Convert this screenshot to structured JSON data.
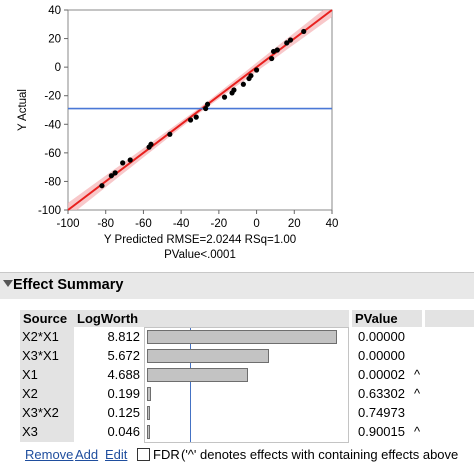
{
  "chart_data": {
    "type": "scatter",
    "xlabel": "Y Predicted RMSE=2.0244 RSq=1.00",
    "xlabel2": "PValue<.0001",
    "ylabel": "Y Actual",
    "xlim": [
      -100,
      40
    ],
    "ylim": [
      -100,
      40
    ],
    "xticks": [
      "-100",
      "-80",
      "-60",
      "-40",
      "-20",
      "0",
      "20",
      "40"
    ],
    "yticks": [
      "40",
      "20",
      "0",
      "-20",
      "-40",
      "-60",
      "-80",
      "-100"
    ],
    "mean_line": -29,
    "fit_line": [
      [
        -100,
        -100
      ],
      [
        40,
        40
      ]
    ],
    "points": [
      [
        -82,
        -83
      ],
      [
        -77,
        -76
      ],
      [
        -75,
        -74
      ],
      [
        -71,
        -67
      ],
      [
        -67,
        -65
      ],
      [
        -57,
        -56
      ],
      [
        -56,
        -54
      ],
      [
        -46,
        -47
      ],
      [
        -35,
        -37
      ],
      [
        -32,
        -35
      ],
      [
        -27,
        -29
      ],
      [
        -26,
        -26
      ],
      [
        -17,
        -21
      ],
      [
        -13,
        -18
      ],
      [
        -12,
        -16
      ],
      [
        -7,
        -12
      ],
      [
        -4,
        -8
      ],
      [
        -3,
        -6
      ],
      [
        0,
        -2
      ],
      [
        8,
        6
      ],
      [
        9,
        11
      ],
      [
        11,
        12
      ],
      [
        16,
        17
      ],
      [
        18,
        19
      ],
      [
        25,
        25
      ]
    ],
    "colors": {
      "fit": "#e8201e",
      "band": "#f6b6b8",
      "mean": "#4a78d6",
      "point": "#000000"
    }
  },
  "effect_summary": {
    "title": "Effect Summary",
    "headers": {
      "source": "Source",
      "logworth": "LogWorth",
      "pvalue": "PValue"
    },
    "rows": [
      {
        "source": "X2*X1",
        "logworth": "8.812",
        "pvalue": "0.00000",
        "caret": "",
        "lw": 8.812
      },
      {
        "source": "X3*X1",
        "logworth": "5.672",
        "pvalue": "0.00000",
        "caret": "",
        "lw": 5.672
      },
      {
        "source": "X1",
        "logworth": "4.688",
        "pvalue": "0.00002",
        "caret": "^",
        "lw": 4.688
      },
      {
        "source": "X2",
        "logworth": "0.199",
        "pvalue": "0.63302",
        "caret": "^",
        "lw": 0.199
      },
      {
        "source": "X3*X2",
        "logworth": "0.125",
        "pvalue": "0.74973",
        "caret": "",
        "lw": 0.125
      },
      {
        "source": "X3",
        "logworth": "0.046",
        "pvalue": "0.90015",
        "caret": "^",
        "lw": 0.046
      }
    ],
    "reference_logworth": 2
  },
  "footer": {
    "remove": "Remove",
    "add": "Add",
    "edit": "Edit",
    "fdr": "FDR",
    "note": "('^' denotes effects with containing effects above"
  }
}
